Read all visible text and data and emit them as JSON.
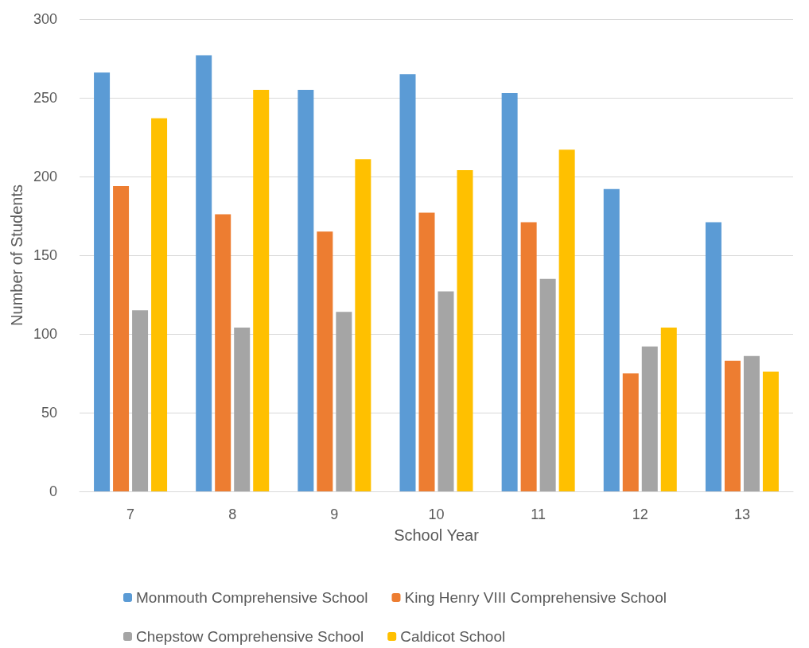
{
  "chart_data": {
    "type": "bar",
    "xlabel": "School Year",
    "ylabel": "Number of Students",
    "categories": [
      "7",
      "8",
      "9",
      "10",
      "11",
      "12",
      "13"
    ],
    "series": [
      {
        "name": "Monmouth Comprehensive School",
        "color": "#5b9bd5",
        "values": [
          266,
          277,
          255,
          265,
          253,
          192,
          171
        ]
      },
      {
        "name": "King Henry VIII Comprehensive School",
        "color": "#ed7d31",
        "values": [
          194,
          176,
          165,
          177,
          171,
          75,
          83
        ]
      },
      {
        "name": "Chepstow Comprehensive School",
        "color": "#a5a5a5",
        "values": [
          115,
          104,
          114,
          127,
          135,
          92,
          86
        ]
      },
      {
        "name": "Caldicot School",
        "color": "#ffc000",
        "values": [
          237,
          255,
          211,
          204,
          217,
          104,
          76
        ]
      }
    ],
    "ylim": [
      0,
      300
    ],
    "yticks": [
      0,
      50,
      100,
      150,
      200,
      250,
      300
    ],
    "grid": "y",
    "legend": "bottom"
  }
}
